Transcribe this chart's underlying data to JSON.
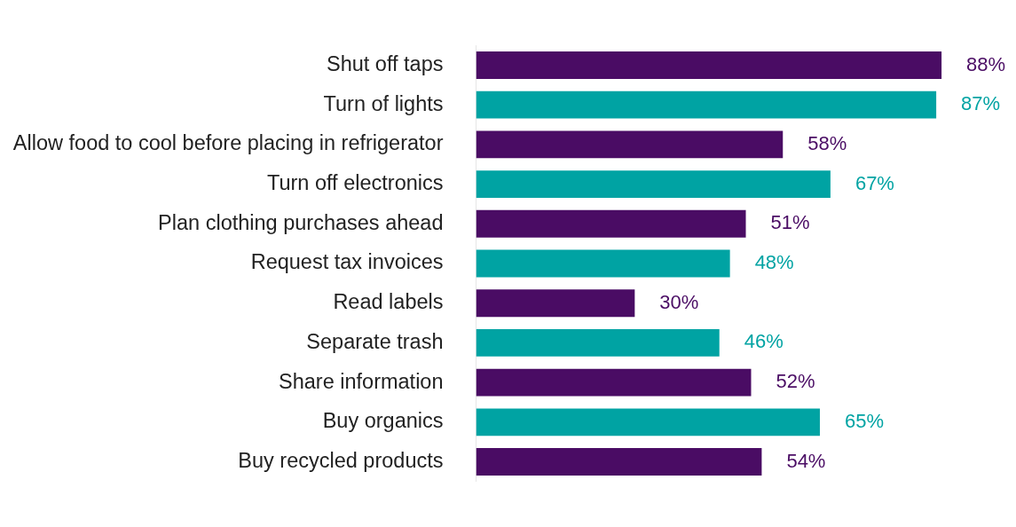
{
  "chart_data": {
    "type": "bar",
    "orientation": "horizontal",
    "categories": [
      "Shut off taps",
      "Turn of lights",
      "Allow food to cool before placing in refrigerator",
      "Turn off electronics",
      "Plan clothing purchases ahead",
      "Request tax invoices",
      "Read labels",
      "Separate trash",
      "Share information",
      "Buy organics",
      "Buy recycled products"
    ],
    "values": [
      88,
      87,
      58,
      67,
      51,
      48,
      30,
      46,
      52,
      65,
      54
    ],
    "value_labels": [
      "88%",
      "87%",
      "58%",
      "67%",
      "51%",
      "48%",
      "30%",
      "46%",
      "52%",
      "65%",
      "54%"
    ],
    "colors": [
      "#4a0c64",
      "#00a3a3",
      "#4a0c64",
      "#00a3a3",
      "#4a0c64",
      "#00a3a3",
      "#4a0c64",
      "#00a3a3",
      "#4a0c64",
      "#00a3a3",
      "#4a0c64"
    ],
    "tick_labels": "y",
    "grid": false,
    "legend": false
  }
}
